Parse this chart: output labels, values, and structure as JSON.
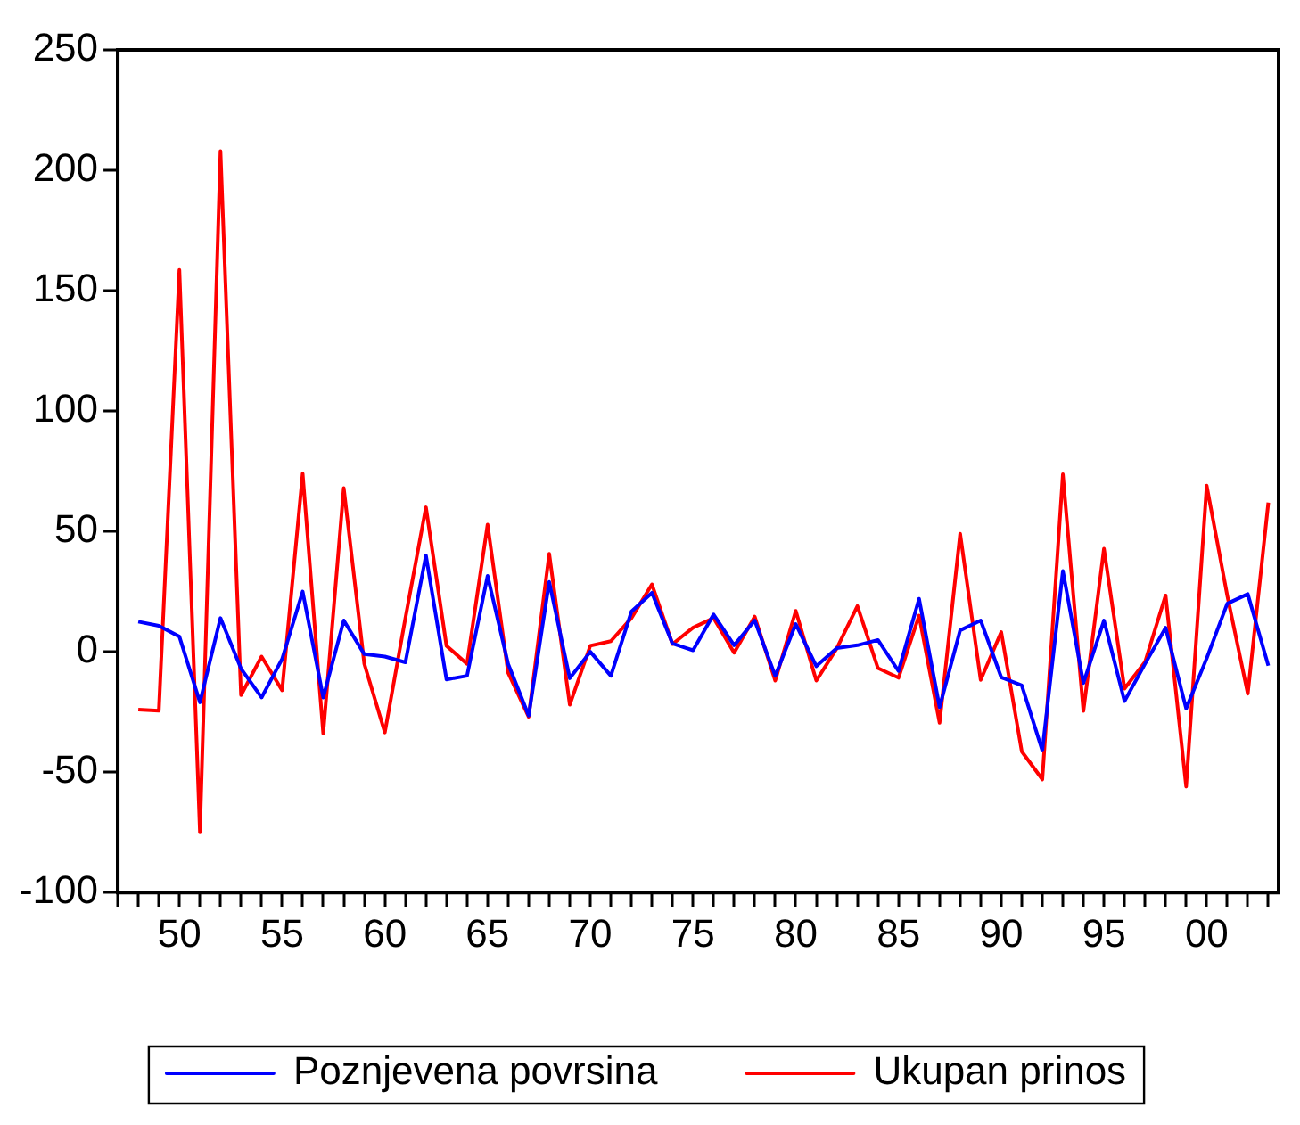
{
  "chart_data": {
    "type": "line",
    "x": [
      1948,
      1949,
      1950,
      1951,
      1952,
      1953,
      1954,
      1955,
      1956,
      1957,
      1958,
      1959,
      1960,
      1961,
      1962,
      1963,
      1964,
      1965,
      1966,
      1967,
      1968,
      1969,
      1970,
      1971,
      1972,
      1973,
      1974,
      1975,
      1976,
      1977,
      1978,
      1979,
      1980,
      1981,
      1982,
      1983,
      1984,
      1985,
      1986,
      1987,
      1988,
      1989,
      1990,
      1991,
      1992,
      1993,
      1994,
      1995,
      1996,
      1997,
      1998,
      1999,
      2000,
      2001,
      2002,
      2003
    ],
    "series": [
      {
        "name": "Poznjevena povrsina",
        "color": "#0000ff",
        "values": [
          12.5,
          10.8,
          6.3,
          -21,
          14,
          -7,
          -19,
          -3,
          25,
          -19,
          13,
          -1,
          -2,
          -4.4,
          40,
          -11.5,
          -10,
          31.5,
          -5,
          -26.5,
          29,
          -11,
          0,
          -10,
          16.7,
          24.5,
          3.4,
          0.6,
          15.5,
          2.7,
          13,
          -10,
          11.5,
          -6,
          1.5,
          2.7,
          4.9,
          -8,
          22,
          -23,
          8.9,
          13,
          -10.6,
          -14,
          -41,
          33.6,
          -13,
          13,
          -20.5,
          -5,
          10,
          -23.6,
          -2.7,
          20,
          24,
          -5.8
        ]
      },
      {
        "name": "Ukupan prinos",
        "color": "#ff0000",
        "values": [
          -24,
          -24.5,
          158.6,
          -75,
          208,
          -18,
          -2,
          -16,
          74,
          -34,
          68,
          -5,
          -33.5,
          14,
          60,
          2.5,
          -5,
          52.8,
          -8.7,
          -27,
          40.7,
          -22,
          2.5,
          4.4,
          14,
          28,
          3.2,
          10,
          14,
          -0.4,
          14.6,
          -12,
          17,
          -12,
          1.5,
          19,
          -6.8,
          -10.8,
          15,
          -29.5,
          49,
          -11.7,
          8.2,
          -41.4,
          -53,
          73.7,
          -24.6,
          42.8,
          -15.3,
          -4.2,
          23.4,
          -56,
          69,
          23.4,
          -17.4,
          62
        ]
      }
    ],
    "xlim": [
      1947,
      2003.5
    ],
    "xticks": [
      {
        "value": 1947,
        "label": null
      },
      {
        "value": 1948,
        "label": null
      },
      {
        "value": 1949,
        "label": null
      },
      {
        "value": 1950,
        "label": "50"
      },
      {
        "value": 1951,
        "label": null
      },
      {
        "value": 1952,
        "label": null
      },
      {
        "value": 1953,
        "label": null
      },
      {
        "value": 1954,
        "label": null
      },
      {
        "value": 1955,
        "label": "55"
      },
      {
        "value": 1956,
        "label": null
      },
      {
        "value": 1957,
        "label": null
      },
      {
        "value": 1958,
        "label": null
      },
      {
        "value": 1959,
        "label": null
      },
      {
        "value": 1960,
        "label": "60"
      },
      {
        "value": 1961,
        "label": null
      },
      {
        "value": 1962,
        "label": null
      },
      {
        "value": 1963,
        "label": null
      },
      {
        "value": 1964,
        "label": null
      },
      {
        "value": 1965,
        "label": "65"
      },
      {
        "value": 1966,
        "label": null
      },
      {
        "value": 1967,
        "label": null
      },
      {
        "value": 1968,
        "label": null
      },
      {
        "value": 1969,
        "label": null
      },
      {
        "value": 1970,
        "label": "70"
      },
      {
        "value": 1971,
        "label": null
      },
      {
        "value": 1972,
        "label": null
      },
      {
        "value": 1973,
        "label": null
      },
      {
        "value": 1974,
        "label": null
      },
      {
        "value": 1975,
        "label": "75"
      },
      {
        "value": 1976,
        "label": null
      },
      {
        "value": 1977,
        "label": null
      },
      {
        "value": 1978,
        "label": null
      },
      {
        "value": 1979,
        "label": null
      },
      {
        "value": 1980,
        "label": "80"
      },
      {
        "value": 1981,
        "label": null
      },
      {
        "value": 1982,
        "label": null
      },
      {
        "value": 1983,
        "label": null
      },
      {
        "value": 1984,
        "label": null
      },
      {
        "value": 1985,
        "label": "85"
      },
      {
        "value": 1986,
        "label": null
      },
      {
        "value": 1987,
        "label": null
      },
      {
        "value": 1988,
        "label": null
      },
      {
        "value": 1989,
        "label": null
      },
      {
        "value": 1990,
        "label": "90"
      },
      {
        "value": 1991,
        "label": null
      },
      {
        "value": 1992,
        "label": null
      },
      {
        "value": 1993,
        "label": null
      },
      {
        "value": 1994,
        "label": null
      },
      {
        "value": 1995,
        "label": "95"
      },
      {
        "value": 1996,
        "label": null
      },
      {
        "value": 1997,
        "label": null
      },
      {
        "value": 1998,
        "label": null
      },
      {
        "value": 1999,
        "label": null
      },
      {
        "value": 2000,
        "label": "00"
      },
      {
        "value": 2001,
        "label": null
      },
      {
        "value": 2002,
        "label": null
      },
      {
        "value": 2003,
        "label": null
      }
    ],
    "ylim": [
      -100,
      250
    ],
    "yticks": [
      -100,
      -50,
      0,
      50,
      100,
      150,
      200,
      250
    ],
    "grid": false,
    "legend": "bottom",
    "marker": "none",
    "line_style": "solid"
  }
}
